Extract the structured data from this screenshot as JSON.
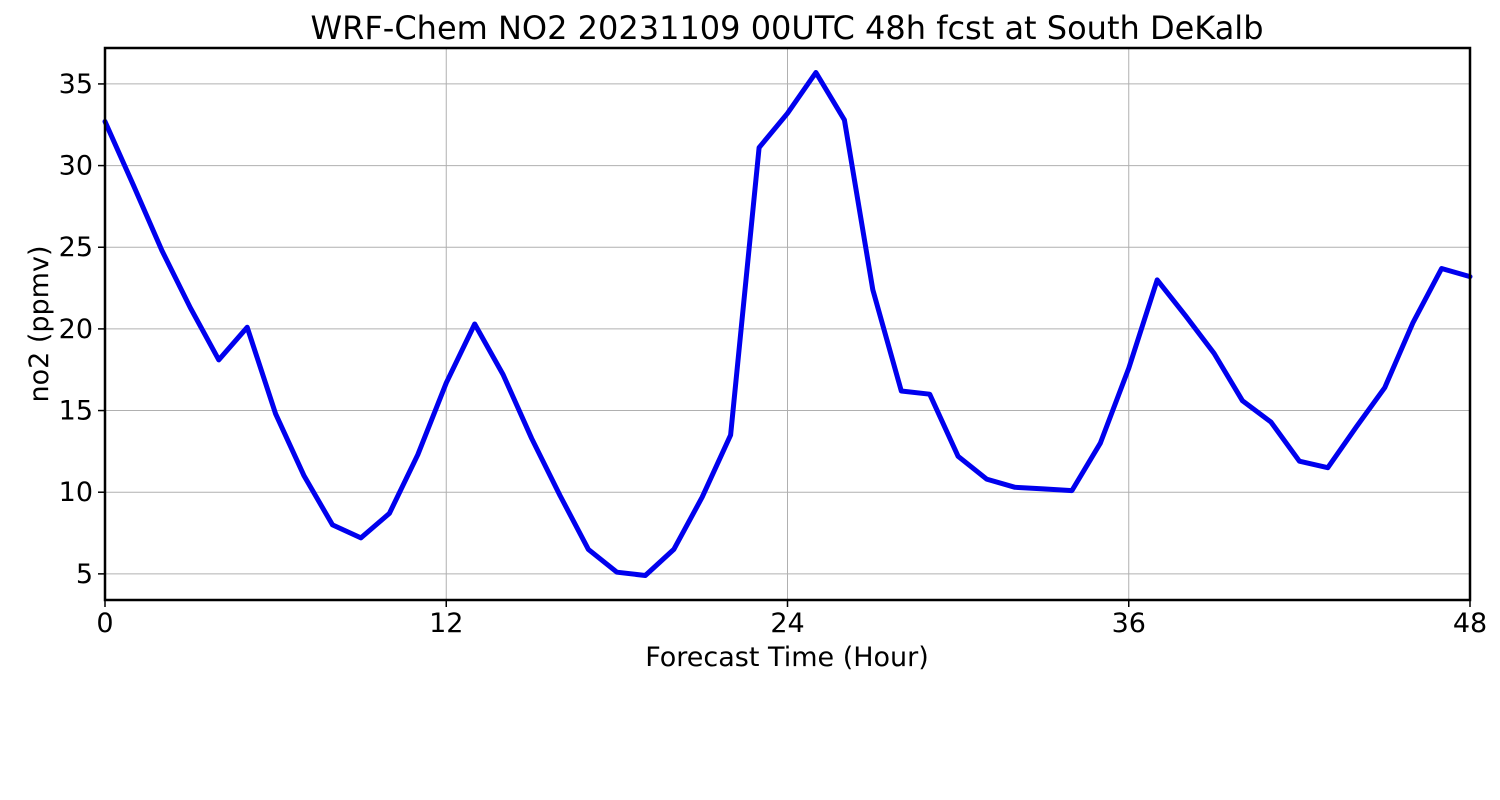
{
  "chart_data": {
    "type": "line",
    "title": "WRF-Chem NO2  20231109 00UTC 48h fcst at South DeKalb",
    "xlabel": "Forecast Time (Hour)",
    "ylabel": "no2  (ppmv)",
    "xlim": [
      0,
      48
    ],
    "ylim": [
      3.4,
      37.2
    ],
    "xticks": [
      0,
      12,
      24,
      36,
      48
    ],
    "yticks": [
      5,
      10,
      15,
      20,
      25,
      30,
      35
    ],
    "grid": true,
    "series": [
      {
        "color": "#0000ee",
        "x": [
          0,
          1,
          2,
          3,
          4,
          5,
          6,
          7,
          8,
          9,
          10,
          11,
          12,
          13,
          14,
          15,
          16,
          17,
          18,
          19,
          20,
          21,
          22,
          23,
          24,
          25,
          26,
          27,
          28,
          29,
          30,
          31,
          32,
          33,
          34,
          35,
          36,
          37,
          38,
          39,
          40,
          41,
          42,
          43,
          44,
          45,
          46,
          47,
          48
        ],
        "y": [
          32.7,
          28.8,
          24.8,
          21.3,
          18.1,
          20.1,
          14.8,
          11.0,
          8.0,
          7.2,
          8.7,
          12.3,
          16.7,
          20.3,
          17.2,
          13.3,
          9.8,
          6.5,
          5.1,
          4.9,
          6.5,
          9.7,
          13.5,
          31.1,
          33.2,
          35.7,
          32.8,
          22.4,
          16.2,
          16.0,
          12.2,
          10.8,
          10.3,
          10.2,
          10.1,
          13.0,
          17.6,
          23.0,
          20.8,
          18.5,
          15.6,
          14.3,
          11.9,
          11.5,
          14.0,
          16.4,
          20.4,
          23.7,
          23.2
        ]
      }
    ]
  }
}
